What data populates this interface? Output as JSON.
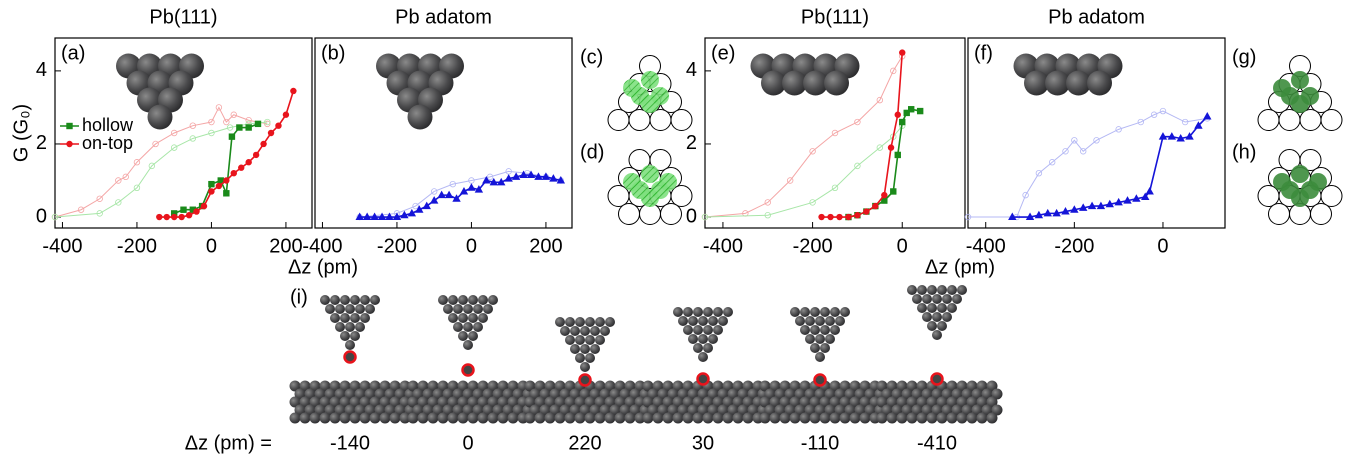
{
  "chart_data": [
    {
      "type": "line",
      "panel_label": "(a)",
      "title": "Pb(111)",
      "ylabel": "G (G₀)",
      "xlabel": "Δz (pm)",
      "xlim": [
        -420,
        270
      ],
      "ylim": [
        -0.3,
        4.9
      ],
      "xticks": [
        -400,
        -200,
        0,
        200
      ],
      "yticks": [
        0,
        2,
        4
      ],
      "grid": false,
      "legend": "left",
      "series": [
        {
          "color": "#f4a6a6",
          "marker": "open-circle",
          "x": [
            -420,
            -350,
            -300,
            -250,
            -230,
            -200,
            -150,
            -100,
            -50,
            0,
            20,
            40,
            60,
            100,
            150
          ],
          "values": [
            0,
            0.2,
            0.5,
            1.0,
            1.1,
            1.5,
            2.0,
            2.3,
            2.5,
            2.6,
            3.0,
            2.6,
            2.8,
            2.65,
            2.55
          ]
        },
        {
          "color": "#a8e6a8",
          "marker": "open-circle",
          "x": [
            -420,
            -300,
            -250,
            -200,
            -160,
            -100,
            -50,
            0,
            50,
            100,
            150
          ],
          "values": [
            0,
            0.1,
            0.4,
            0.8,
            1.4,
            1.9,
            2.15,
            2.3,
            2.45,
            2.55,
            2.6
          ]
        },
        {
          "name": "hollow",
          "color": "#1a8a1a",
          "marker": "square",
          "x": [
            -100,
            -75,
            -50,
            -25,
            0,
            25,
            40,
            55,
            75,
            100,
            125
          ],
          "values": [
            0.1,
            0.2,
            0.2,
            0.3,
            0.9,
            1.0,
            0.65,
            2.2,
            2.45,
            2.45,
            2.55
          ]
        },
        {
          "name": "on-top",
          "color": "#e8141c",
          "marker": "circle",
          "x": [
            -140,
            -120,
            -100,
            -80,
            -60,
            -40,
            -20,
            0,
            20,
            40,
            60,
            80,
            100,
            120,
            140,
            160,
            180,
            200,
            220
          ],
          "values": [
            0,
            0,
            0,
            0,
            0.05,
            0.15,
            0.3,
            0.7,
            0.85,
            1.0,
            1.2,
            1.35,
            1.5,
            1.7,
            2.0,
            2.3,
            2.5,
            2.8,
            3.45
          ]
        }
      ]
    },
    {
      "type": "line",
      "panel_label": "(b)",
      "title": "Pb adatom",
      "xlim": [
        -420,
        270
      ],
      "ylim": [
        -0.3,
        4.9
      ],
      "xticks": [
        -400,
        -200,
        0,
        200
      ],
      "grid": false,
      "series": [
        {
          "color": "#b4b8f4",
          "marker": "open-circle",
          "x": [
            -300,
            -200,
            -150,
            -100,
            -50,
            0,
            50,
            100,
            150,
            200,
            240
          ],
          "values": [
            0,
            0.1,
            0.3,
            0.7,
            0.9,
            1.0,
            1.1,
            1.25,
            1.2,
            1.1,
            1.0
          ]
        },
        {
          "color": "#1414d8",
          "marker": "triangle",
          "x": [
            -300,
            -280,
            -260,
            -240,
            -220,
            -200,
            -180,
            -160,
            -140,
            -120,
            -100,
            -80,
            -60,
            -40,
            -20,
            0,
            20,
            40,
            60,
            80,
            100,
            120,
            140,
            160,
            180,
            200,
            220,
            240
          ],
          "values": [
            0,
            0,
            0,
            0,
            0,
            0,
            0.05,
            0.1,
            0.2,
            0.3,
            0.45,
            0.6,
            0.6,
            0.5,
            0.7,
            0.8,
            0.75,
            1.0,
            0.95,
            0.95,
            1.05,
            1.1,
            1.15,
            1.15,
            1.1,
            1.1,
            1.05,
            1.0
          ]
        }
      ]
    },
    {
      "type": "line",
      "panel_label": "(e)",
      "title": "Pb(111)",
      "xlabel": "Δz (pm)",
      "xlim": [
        -440,
        140
      ],
      "ylim": [
        -0.3,
        4.9
      ],
      "xticks": [
        -400,
        -200,
        0
      ],
      "yticks": [
        0,
        2,
        4
      ],
      "grid": false,
      "series": [
        {
          "color": "#f4a6a6",
          "marker": "open-circle",
          "x": [
            -440,
            -350,
            -300,
            -250,
            -200,
            -150,
            -100,
            -50,
            -20,
            0
          ],
          "values": [
            0,
            0.1,
            0.4,
            1.0,
            1.8,
            2.3,
            2.6,
            3.2,
            4.0,
            4.4
          ]
        },
        {
          "color": "#a8e6a8",
          "marker": "open-circle",
          "x": [
            -440,
            -300,
            -200,
            -150,
            -100,
            -50,
            -20,
            0
          ],
          "values": [
            0,
            0.05,
            0.4,
            0.8,
            1.4,
            1.9,
            2.2,
            2.5
          ]
        },
        {
          "color": "#1a8a1a",
          "marker": "square",
          "x": [
            -120,
            -100,
            -80,
            -60,
            -40,
            -20,
            -10,
            0,
            10,
            20,
            40
          ],
          "values": [
            0,
            0.05,
            0.15,
            0.3,
            0.45,
            0.7,
            1.7,
            2.6,
            2.85,
            2.95,
            2.9
          ]
        },
        {
          "color": "#e8141c",
          "marker": "circle",
          "x": [
            -180,
            -160,
            -140,
            -120,
            -100,
            -80,
            -60,
            -40,
            -25,
            -10,
            0
          ],
          "values": [
            0,
            0,
            0,
            0,
            0.05,
            0.15,
            0.3,
            0.6,
            1.9,
            2.8,
            4.5
          ]
        }
      ]
    },
    {
      "type": "line",
      "panel_label": "(f)",
      "title": "Pb adatom",
      "xlim": [
        -440,
        140
      ],
      "ylim": [
        -0.3,
        4.9
      ],
      "xticks": [
        -400,
        -200,
        0
      ],
      "grid": false,
      "series": [
        {
          "color": "#b4b8f4",
          "marker": "open-circle",
          "x": [
            -440,
            -330,
            -310,
            -280,
            -250,
            -220,
            -200,
            -180,
            -150,
            -100,
            -50,
            -20,
            0,
            50,
            100
          ],
          "values": [
            0,
            0,
            0.6,
            1.2,
            1.5,
            1.8,
            2.1,
            1.8,
            2.1,
            2.4,
            2.6,
            2.8,
            2.9,
            2.6,
            2.7
          ]
        },
        {
          "color": "#1414d8",
          "marker": "triangle",
          "x": [
            -340,
            -300,
            -280,
            -260,
            -240,
            -220,
            -200,
            -180,
            -160,
            -140,
            -120,
            -100,
            -80,
            -60,
            -40,
            -30,
            0,
            20,
            40,
            60,
            80,
            100
          ],
          "values": [
            0,
            0,
            0.05,
            0.1,
            0.1,
            0.15,
            0.2,
            0.25,
            0.3,
            0.3,
            0.35,
            0.4,
            0.45,
            0.5,
            0.55,
            0.7,
            2.2,
            2.2,
            2.15,
            2.2,
            2.5,
            2.75
          ]
        }
      ]
    }
  ],
  "side_panels": [
    "(c)",
    "(d)",
    "(g)",
    "(h)"
  ],
  "structures": {
    "label": "(i)",
    "dz_label": "Δz (pm) =",
    "values": [
      -140,
      0,
      220,
      30,
      -110,
      -410
    ]
  }
}
